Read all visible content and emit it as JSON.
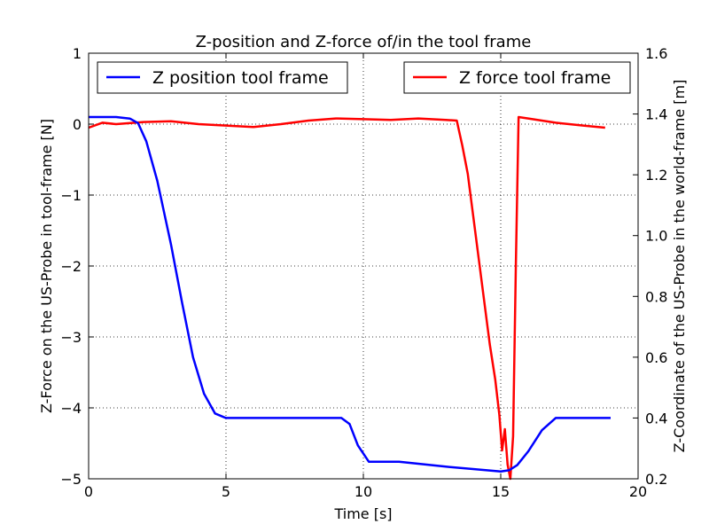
{
  "chart_data": {
    "type": "line",
    "title": "Z-position and Z-force of/in the tool frame",
    "xlabel": "Time [s]",
    "ylabel_left": "Z-Force on the US-Probe in tool-frame [N]",
    "ylabel_right": "Z-Coordinate of the US-Probe in the world-frame [m]",
    "xlim": [
      0,
      20
    ],
    "ylim_left": [
      -5,
      1
    ],
    "ylim_right": [
      0.2,
      1.6
    ],
    "xticks": [
      "0",
      "5",
      "10",
      "15",
      "20"
    ],
    "yticks_left": [
      "−5",
      "−4",
      "−3",
      "−2",
      "−1",
      "0",
      "1"
    ],
    "yticks_right": [
      "0.2",
      "0.4",
      "0.6",
      "0.8",
      "1.0",
      "1.2",
      "1.4",
      "1.6"
    ],
    "grid": true,
    "series": [
      {
        "name": "Z position tool frame",
        "color": "#0000ff",
        "axis": "right",
        "legend_position": "top-left",
        "points": [
          [
            0.0,
            1.39
          ],
          [
            1.0,
            1.39
          ],
          [
            1.5,
            1.385
          ],
          [
            1.8,
            1.37
          ],
          [
            2.1,
            1.31
          ],
          [
            2.5,
            1.18
          ],
          [
            3.0,
            0.97
          ],
          [
            3.4,
            0.78
          ],
          [
            3.8,
            0.6
          ],
          [
            4.2,
            0.48
          ],
          [
            4.6,
            0.415
          ],
          [
            5.0,
            0.4
          ],
          [
            9.2,
            0.4
          ],
          [
            9.5,
            0.38
          ],
          [
            9.8,
            0.31
          ],
          [
            10.2,
            0.256
          ],
          [
            11.3,
            0.256
          ],
          [
            13.0,
            0.24
          ],
          [
            14.5,
            0.228
          ],
          [
            15.0,
            0.224
          ],
          [
            15.3,
            0.228
          ],
          [
            15.6,
            0.245
          ],
          [
            16.0,
            0.29
          ],
          [
            16.5,
            0.36
          ],
          [
            17.0,
            0.4
          ],
          [
            19.0,
            0.4
          ]
        ]
      },
      {
        "name": "Z force tool frame",
        "color": "#ff0000",
        "axis": "left",
        "legend_position": "top-right",
        "points": [
          [
            0.0,
            -0.05
          ],
          [
            0.5,
            0.02
          ],
          [
            1.0,
            0.0
          ],
          [
            2.0,
            0.03
          ],
          [
            3.0,
            0.04
          ],
          [
            4.0,
            0.0
          ],
          [
            5.0,
            -0.02
          ],
          [
            6.0,
            -0.04
          ],
          [
            7.0,
            0.0
          ],
          [
            8.0,
            0.05
          ],
          [
            9.0,
            0.08
          ],
          [
            10.0,
            0.07
          ],
          [
            11.0,
            0.06
          ],
          [
            12.0,
            0.08
          ],
          [
            13.0,
            0.06
          ],
          [
            13.4,
            0.05
          ],
          [
            13.6,
            -0.3
          ],
          [
            13.8,
            -0.7
          ],
          [
            14.0,
            -1.3
          ],
          [
            14.2,
            -1.9
          ],
          [
            14.4,
            -2.5
          ],
          [
            14.6,
            -3.1
          ],
          [
            14.8,
            -3.6
          ],
          [
            14.95,
            -4.1
          ],
          [
            15.05,
            -4.6
          ],
          [
            15.15,
            -4.3
          ],
          [
            15.25,
            -4.8
          ],
          [
            15.35,
            -5.0
          ],
          [
            15.45,
            -4.4
          ],
          [
            15.55,
            -2.0
          ],
          [
            15.65,
            0.1
          ],
          [
            16.0,
            0.08
          ],
          [
            17.0,
            0.02
          ],
          [
            18.0,
            -0.02
          ],
          [
            18.8,
            -0.05
          ]
        ]
      }
    ]
  }
}
